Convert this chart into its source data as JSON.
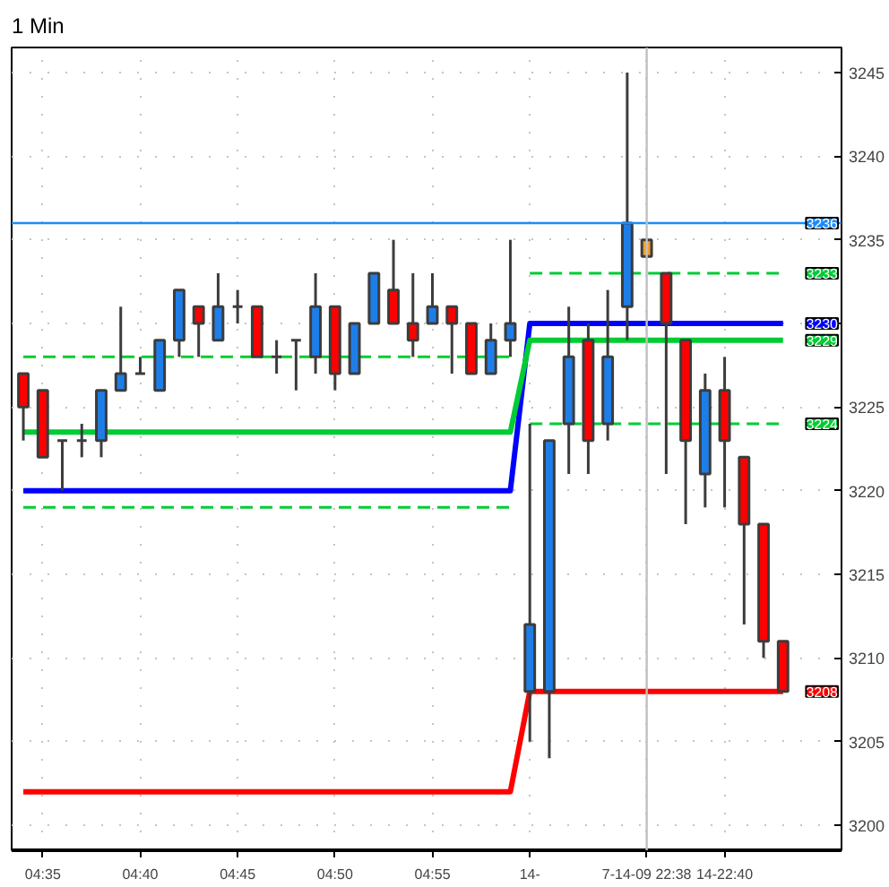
{
  "chart_data": {
    "type": "candlestick",
    "title": "1 Min",
    "categories": [
      null,
      "04:35",
      null,
      null,
      null,
      null,
      "04:40",
      null,
      null,
      null,
      null,
      "04:45",
      null,
      null,
      null,
      null,
      "04:50",
      null,
      null,
      null,
      null,
      "04:55",
      null,
      null,
      null,
      null,
      "14-",
      null,
      null,
      null,
      null,
      null,
      "7-14-09 22:38",
      null,
      null,
      null,
      "14-22:40",
      null,
      null,
      null
    ],
    "ohlc": [
      [
        3227,
        3227,
        3223,
        3225
      ],
      [
        3226,
        3226,
        3222,
        3222
      ],
      [
        3223,
        3223,
        3220,
        3223
      ],
      [
        3223,
        3224,
        3222,
        3223
      ],
      [
        3223,
        3226,
        3222,
        3226
      ],
      [
        3226,
        3231,
        3226,
        3227
      ],
      [
        3227,
        3228,
        3227,
        3227
      ],
      [
        3226,
        3229,
        3226,
        3229
      ],
      [
        3229,
        3232,
        3228,
        3232
      ],
      [
        3231,
        3231,
        3228,
        3230
      ],
      [
        3229,
        3233,
        3229,
        3231
      ],
      [
        3231,
        3232,
        3230,
        3231
      ],
      [
        3231,
        3231,
        3228,
        3228
      ],
      [
        3228,
        3229,
        3227,
        3228
      ],
      [
        3229,
        3229,
        3226,
        3229
      ],
      [
        3228,
        3233,
        3227,
        3231
      ],
      [
        3231,
        3231,
        3226,
        3227
      ],
      [
        3227,
        3230,
        3227,
        3230
      ],
      [
        3230,
        3233,
        3230,
        3233
      ],
      [
        3232,
        3235,
        3230,
        3230
      ],
      [
        3230,
        3233,
        3228,
        3229
      ],
      [
        3230,
        3233,
        3230,
        3231
      ],
      [
        3231,
        3231,
        3227,
        3230
      ],
      [
        3230,
        3230,
        3227,
        3227
      ],
      [
        3227,
        3230,
        3227,
        3229
      ],
      [
        3229,
        3235,
        3228,
        3230
      ],
      [
        3208,
        3224,
        3205,
        3212
      ],
      [
        3208,
        3223,
        3204,
        3223
      ],
      [
        3224,
        3231,
        3221,
        3228
      ],
      [
        3229,
        3230,
        3221,
        3223
      ],
      [
        3224,
        3232,
        3223,
        3228
      ],
      [
        3231,
        3245,
        3229,
        3236
      ],
      [
        3235,
        3235,
        3234,
        3234
      ],
      [
        3233,
        3233,
        3221,
        3230
      ],
      [
        3229,
        3229,
        3218,
        3223
      ],
      [
        3221,
        3227,
        3219,
        3226
      ],
      [
        3226,
        3228,
        3219,
        3223
      ],
      [
        3222,
        3222,
        3212,
        3218
      ],
      [
        3218,
        3218,
        3210,
        3211
      ],
      [
        3211,
        3211,
        3208,
        3208
      ]
    ],
    "colors": [
      "#ff0000",
      "#ff0000",
      "#3c3c3c",
      "#3c3c3c",
      "#1e7ee8",
      "#1e7ee8",
      "#3c3c3c",
      "#1e7ee8",
      "#1e7ee8",
      "#ff0000",
      "#1e7ee8",
      "#3c3c3c",
      "#ff0000",
      "#3c3c3c",
      "#3c3c3c",
      "#1e7ee8",
      "#ff0000",
      "#1e7ee8",
      "#1e7ee8",
      "#ff0000",
      "#ff0000",
      "#1e7ee8",
      "#ff0000",
      "#ff0000",
      "#1e7ee8",
      "#1e7ee8",
      "#1e7ee8",
      "#1e7ee8",
      "#1e7ee8",
      "#ff0000",
      "#1e7ee8",
      "#1e7ee8",
      "#f0a030",
      "#ff0000",
      "#ff0000",
      "#1e7ee8",
      "#ff0000",
      "#ff0000",
      "#ff0000",
      "#ff0000"
    ],
    "series": [
      {
        "type": "line",
        "color": "#00cc33",
        "line_style": "dashed",
        "values": [
          3228,
          3228,
          3228,
          3228,
          3228,
          3228,
          3228,
          3228,
          3228,
          3228,
          3228,
          3228,
          3228,
          3228,
          3228,
          3228,
          3228,
          3228,
          3228,
          3228,
          3228,
          3228,
          3228,
          3228,
          3228,
          3228,
          null,
          null,
          null,
          null,
          null,
          null,
          null,
          null,
          null,
          null,
          null,
          null,
          null,
          null
        ]
      },
      {
        "type": "line",
        "color": "#00cc33",
        "line_style": "dashed",
        "values": [
          null,
          null,
          null,
          null,
          null,
          null,
          null,
          null,
          null,
          null,
          null,
          null,
          null,
          null,
          null,
          null,
          null,
          null,
          null,
          null,
          null,
          null,
          null,
          null,
          null,
          null,
          3233,
          3233,
          3233,
          3233,
          3233,
          3233,
          3233,
          3233,
          3233,
          3233,
          3233,
          3233,
          3233,
          3233
        ],
        "value_labels": [
          null,
          null,
          null,
          null,
          null,
          null,
          null,
          null,
          null,
          null,
          null,
          null,
          null,
          null,
          null,
          null,
          null,
          null,
          null,
          null,
          null,
          null,
          null,
          null,
          null,
          null,
          null,
          null,
          null,
          null,
          null,
          null,
          null,
          null,
          null,
          null,
          null,
          null,
          null,
          "3233"
        ]
      },
      {
        "type": "line",
        "color": "#00cc33",
        "line_style": "dashed",
        "values": [
          3219,
          3219,
          3219,
          3219,
          3219,
          3219,
          3219,
          3219,
          3219,
          3219,
          3219,
          3219,
          3219,
          3219,
          3219,
          3219,
          3219,
          3219,
          3219,
          3219,
          3219,
          3219,
          3219,
          3219,
          3219,
          3219,
          null,
          null,
          null,
          null,
          null,
          null,
          null,
          null,
          null,
          null,
          null,
          null,
          null,
          null
        ]
      },
      {
        "type": "line",
        "color": "#00cc33",
        "line_style": "dashed",
        "values": [
          null,
          null,
          null,
          null,
          null,
          null,
          null,
          null,
          null,
          null,
          null,
          null,
          null,
          null,
          null,
          null,
          null,
          null,
          null,
          null,
          null,
          null,
          null,
          null,
          null,
          null,
          3224,
          3224,
          3224,
          3224,
          3224,
          3224,
          3224,
          3224,
          3224,
          3224,
          3224,
          3224,
          3224,
          3224
        ],
        "value_labels": [
          null,
          null,
          null,
          null,
          null,
          null,
          null,
          null,
          null,
          null,
          null,
          null,
          null,
          null,
          null,
          null,
          null,
          null,
          null,
          null,
          null,
          null,
          null,
          null,
          null,
          null,
          null,
          null,
          null,
          null,
          null,
          null,
          null,
          null,
          null,
          null,
          null,
          null,
          null,
          "3224"
        ]
      },
      {
        "type": "line",
        "color": "#0000ff",
        "line_style": "solid",
        "values": [
          3220,
          3220,
          3220,
          3220,
          3220,
          3220,
          3220,
          3220,
          3220,
          3220,
          3220,
          3220,
          3220,
          3220,
          3220,
          3220,
          3220,
          3220,
          3220,
          3220,
          3220,
          3220,
          3220,
          3220,
          3220,
          3220,
          3230,
          3230,
          3230,
          3230,
          3230,
          3230,
          3230,
          3230,
          3230,
          3230,
          3230,
          3230,
          3230,
          3230
        ],
        "value_labels": [
          null,
          null,
          null,
          null,
          null,
          null,
          null,
          null,
          null,
          null,
          null,
          null,
          null,
          null,
          null,
          null,
          null,
          null,
          null,
          null,
          null,
          null,
          null,
          null,
          null,
          null,
          null,
          null,
          null,
          null,
          null,
          null,
          null,
          null,
          null,
          null,
          null,
          null,
          null,
          "3230"
        ]
      },
      {
        "type": "line",
        "color": "#00cc33",
        "line_style": "solid",
        "values": [
          3223.5,
          3223.5,
          3223.5,
          3223.5,
          3223.5,
          3223.5,
          3223.5,
          3223.5,
          3223.5,
          3223.5,
          3223.5,
          3223.5,
          3223.5,
          3223.5,
          3223.5,
          3223.5,
          3223.5,
          3223.5,
          3223.5,
          3223.5,
          3223.5,
          3223.5,
          3223.5,
          3223.5,
          3223.5,
          3223.5,
          3229,
          3229,
          3229,
          3229,
          3229,
          3229,
          3229,
          3229,
          3229,
          3229,
          3229,
          3229,
          3229,
          3229
        ],
        "value_labels": [
          null,
          null,
          null,
          null,
          null,
          null,
          null,
          null,
          null,
          null,
          null,
          null,
          null,
          null,
          null,
          null,
          null,
          null,
          null,
          null,
          null,
          null,
          null,
          null,
          null,
          null,
          null,
          null,
          null,
          null,
          null,
          null,
          null,
          null,
          null,
          null,
          null,
          null,
          null,
          "3229"
        ]
      },
      {
        "type": "line",
        "color": "#ff0000",
        "line_style": "solid",
        "values": [
          3202,
          3202,
          3202,
          3202,
          3202,
          3202,
          3202,
          3202,
          3202,
          3202,
          3202,
          3202,
          3202,
          3202,
          3202,
          3202,
          3202,
          3202,
          3202,
          3202,
          3202,
          3202,
          3202,
          3202,
          3202,
          3202,
          3208,
          3208,
          3208,
          3208,
          3208,
          3208,
          3208,
          3208,
          3208,
          3208,
          3208,
          3208,
          3208,
          3208
        ],
        "value_labels": [
          null,
          null,
          null,
          null,
          null,
          null,
          null,
          null,
          null,
          null,
          null,
          null,
          null,
          null,
          null,
          null,
          null,
          null,
          null,
          null,
          null,
          null,
          null,
          null,
          null,
          null,
          null,
          null,
          null,
          null,
          null,
          null,
          null,
          null,
          null,
          null,
          null,
          null,
          null,
          "3208"
        ]
      }
    ],
    "ylim": [
      3198.5,
      3246.5
    ],
    "yticks": [
      3200,
      3205,
      3210,
      3215,
      3220,
      3225,
      {
        "value": 3230,
        "label": null
      },
      3235,
      3240,
      3245
    ],
    "grid": true,
    "ref_lines": [
      {
        "axis": "y",
        "value": 3236,
        "label": "3236",
        "color": "#1a8cff"
      },
      {
        "axis": "x",
        "value": "7-14-09 22:38",
        "color": "#c0c0c0"
      }
    ]
  }
}
